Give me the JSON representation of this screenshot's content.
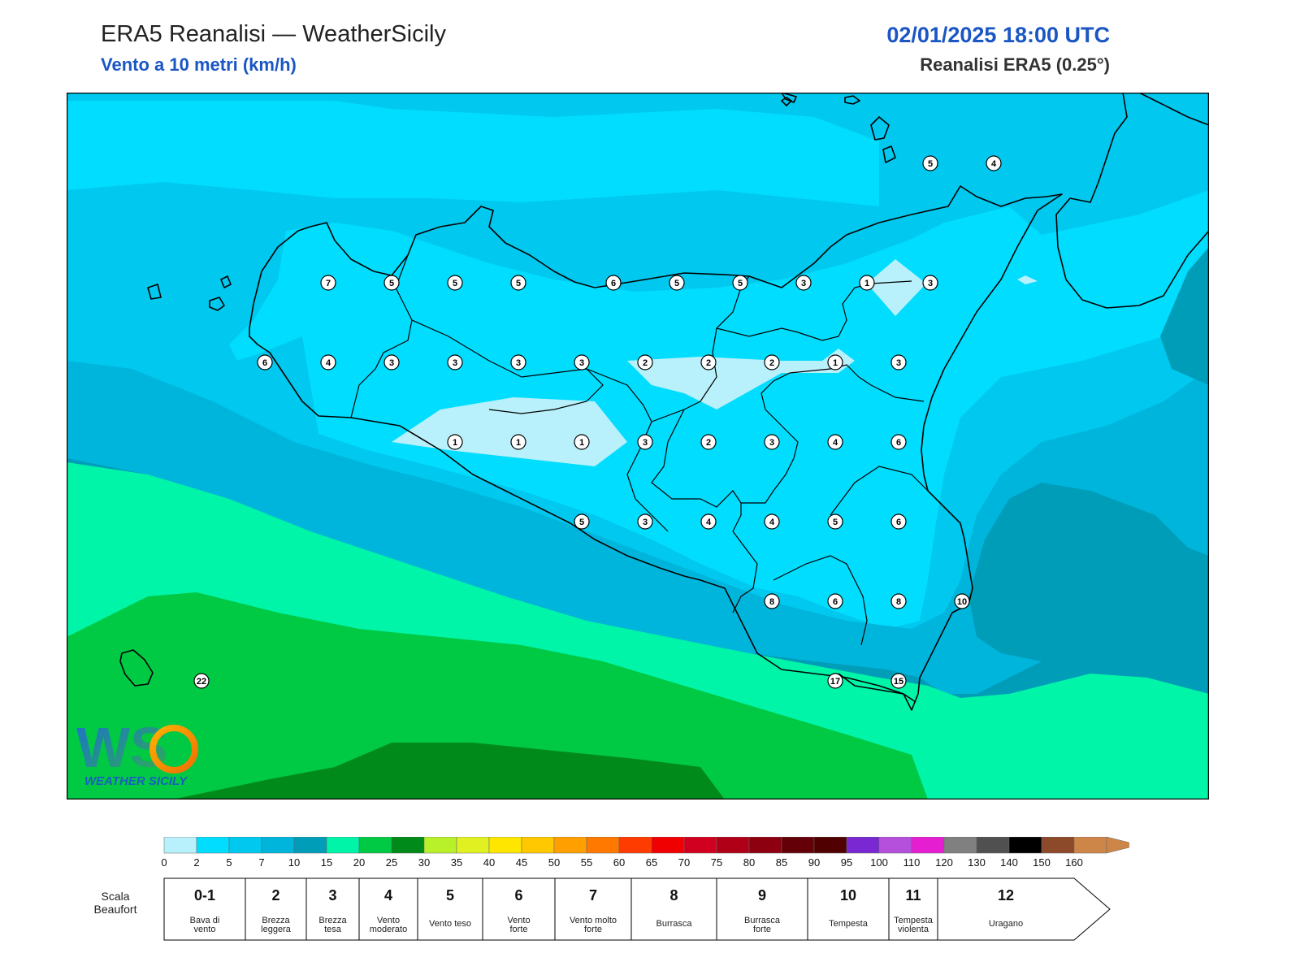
{
  "header": {
    "title": "ERA5 Reanalisi — WeatherSicily",
    "subtitle": "Vento a 10 metri (km/h)",
    "datetime": "02/01/2025 18:00 UTC",
    "source": "Reanalisi ERA5 (0.25°)"
  },
  "logo": {
    "letters": "WS",
    "text": "WEATHER SICILY"
  },
  "colorbar": {
    "ticks": [
      "0",
      "2",
      "5",
      "7",
      "10",
      "15",
      "20",
      "25",
      "30",
      "35",
      "40",
      "45",
      "50",
      "55",
      "60",
      "65",
      "70",
      "75",
      "80",
      "85",
      "90",
      "95",
      "100",
      "110",
      "120",
      "130",
      "140",
      "150",
      "160"
    ],
    "colors": [
      "#b8f0fb",
      "#00ddff",
      "#00c8ee",
      "#00b5db",
      "#009db9",
      "#00f5a8",
      "#00c944",
      "#008a1a",
      "#b8f02a",
      "#e0f020",
      "#ffe600",
      "#ffc800",
      "#ffa000",
      "#ff7800",
      "#ff3c00",
      "#f00000",
      "#d20020",
      "#b00018",
      "#8c0010",
      "#640008",
      "#500000",
      "#7a28d2",
      "#b450dc",
      "#e61ed2",
      "#808080",
      "#505050",
      "#000000",
      "#8c4a2a",
      "#cd8648"
    ]
  },
  "beaufort": {
    "label_line1": "Scala",
    "label_line2": "Beaufort",
    "classes": [
      {
        "num": "0-1",
        "desc1": "Bava di",
        "desc2": "vento"
      },
      {
        "num": "2",
        "desc1": "Brezza",
        "desc2": "leggera"
      },
      {
        "num": "3",
        "desc1": "Brezza",
        "desc2": "tesa"
      },
      {
        "num": "4",
        "desc1": "Vento",
        "desc2": "moderato"
      },
      {
        "num": "5",
        "desc1": "Vento teso",
        "desc2": ""
      },
      {
        "num": "6",
        "desc1": "Vento",
        "desc2": "forte"
      },
      {
        "num": "7",
        "desc1": "Vento molto",
        "desc2": "forte"
      },
      {
        "num": "8",
        "desc1": "Burrasca",
        "desc2": ""
      },
      {
        "num": "9",
        "desc1": "Burrasca",
        "desc2": "forte"
      },
      {
        "num": "10",
        "desc1": "Tempesta",
        "desc2": ""
      },
      {
        "num": "11",
        "desc1": "Tempesta",
        "desc2": "violenta"
      },
      {
        "num": "12",
        "desc1": "Uragano",
        "desc2": ""
      }
    ]
  },
  "map_data": {
    "region": "Sicilia",
    "wind_points_kmh": [
      {
        "lon": 12.5,
        "lat": 38.0,
        "v": "7"
      },
      {
        "lon": 13.0,
        "lat": 38.0,
        "v": "5"
      },
      {
        "lon": 13.5,
        "lat": 38.0,
        "v": "5"
      },
      {
        "lon": 14.0,
        "lat": 38.0,
        "v": "5"
      },
      {
        "lon": 14.75,
        "lat": 38.0,
        "v": "6"
      },
      {
        "lon": 15.25,
        "lat": 38.0,
        "v": "5"
      },
      {
        "lon": 15.75,
        "lat": 38.0,
        "v": "5"
      },
      {
        "lon": 16.25,
        "lat": 38.0,
        "v": "3"
      },
      {
        "lon": 16.75,
        "lat": 38.0,
        "v": "1"
      },
      {
        "lon": 17.25,
        "lat": 38.0,
        "v": "3"
      },
      {
        "lon": 17.25,
        "lat": 38.75,
        "v": "5"
      },
      {
        "lon": 17.75,
        "lat": 38.75,
        "v": "4"
      },
      {
        "lon": 12.0,
        "lat": 37.5,
        "v": "6"
      },
      {
        "lon": 12.5,
        "lat": 37.5,
        "v": "4"
      },
      {
        "lon": 13.0,
        "lat": 37.5,
        "v": "3"
      },
      {
        "lon": 13.5,
        "lat": 37.5,
        "v": "3"
      },
      {
        "lon": 14.0,
        "lat": 37.5,
        "v": "3"
      },
      {
        "lon": 14.5,
        "lat": 37.5,
        "v": "3"
      },
      {
        "lon": 15.0,
        "lat": 37.5,
        "v": "2"
      },
      {
        "lon": 15.5,
        "lat": 37.5,
        "v": "2"
      },
      {
        "lon": 16.0,
        "lat": 37.5,
        "v": "2"
      },
      {
        "lon": 16.5,
        "lat": 37.5,
        "v": "1"
      },
      {
        "lon": 17.0,
        "lat": 37.5,
        "v": "3"
      },
      {
        "lon": 13.5,
        "lat": 37.0,
        "v": "1"
      },
      {
        "lon": 14.0,
        "lat": 37.0,
        "v": "1"
      },
      {
        "lon": 14.5,
        "lat": 37.0,
        "v": "1"
      },
      {
        "lon": 15.0,
        "lat": 37.0,
        "v": "3"
      },
      {
        "lon": 15.5,
        "lat": 37.0,
        "v": "2"
      },
      {
        "lon": 16.0,
        "lat": 37.0,
        "v": "3"
      },
      {
        "lon": 16.5,
        "lat": 37.0,
        "v": "4"
      },
      {
        "lon": 17.0,
        "lat": 37.0,
        "v": "6"
      },
      {
        "lon": 14.5,
        "lat": 36.5,
        "v": "5"
      },
      {
        "lon": 15.0,
        "lat": 36.5,
        "v": "3"
      },
      {
        "lon": 15.5,
        "lat": 36.5,
        "v": "4"
      },
      {
        "lon": 16.0,
        "lat": 36.5,
        "v": "4"
      },
      {
        "lon": 16.5,
        "lat": 36.5,
        "v": "5"
      },
      {
        "lon": 17.0,
        "lat": 36.5,
        "v": "6"
      },
      {
        "lon": 16.0,
        "lat": 36.0,
        "v": "8"
      },
      {
        "lon": 16.5,
        "lat": 36.0,
        "v": "6"
      },
      {
        "lon": 17.0,
        "lat": 36.0,
        "v": "8"
      },
      {
        "lon": 17.5,
        "lat": 36.0,
        "v": "10"
      },
      {
        "lon": 16.5,
        "lat": 35.5,
        "v": "17"
      },
      {
        "lon": 17.0,
        "lat": 35.5,
        "v": "15"
      },
      {
        "lon": 11.5,
        "lat": 35.5,
        "v": "22"
      }
    ]
  }
}
